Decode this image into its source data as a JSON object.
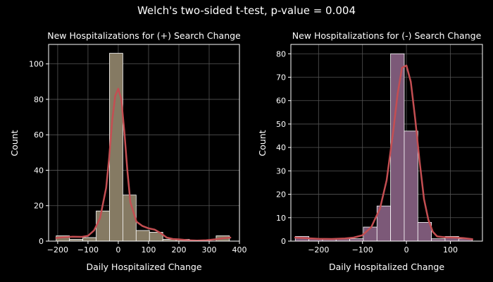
{
  "suptitle": "Welch's two-sided t-test, p-value = 0.004",
  "colors": {
    "background": "#000000",
    "grid": "#555555",
    "axes": "#ffffff",
    "kde": "#c44e52",
    "bar_edge": "#ffffff"
  },
  "chart_data": [
    {
      "type": "bar",
      "title": "New Hospitalizations for (+) Search Change",
      "xlabel": "Daily Hospitalized Change",
      "ylabel": "Count",
      "xlim": [
        -230,
        400
      ],
      "ylim": [
        0,
        111
      ],
      "xticks": [
        -200,
        -100,
        0,
        100,
        200,
        300,
        400
      ],
      "yticks": [
        0,
        20,
        40,
        60,
        80,
        100
      ],
      "grid": true,
      "bar_color": "#857a63",
      "bins": [
        {
          "x0": -205,
          "x1": -161,
          "count": 3
        },
        {
          "x0": -161,
          "x1": -117,
          "count": 1
        },
        {
          "x0": -117,
          "x1": -73,
          "count": 2
        },
        {
          "x0": -73,
          "x1": -29,
          "count": 17
        },
        {
          "x0": -29,
          "x1": 15,
          "count": 106
        },
        {
          "x0": 15,
          "x1": 59,
          "count": 26
        },
        {
          "x0": 59,
          "x1": 103,
          "count": 6
        },
        {
          "x0": 103,
          "x1": 147,
          "count": 5
        },
        {
          "x0": 147,
          "x1": 191,
          "count": 1
        },
        {
          "x0": 191,
          "x1": 235,
          "count": 1
        },
        {
          "x0": 235,
          "x1": 279,
          "count": 0
        },
        {
          "x0": 279,
          "x1": 323,
          "count": 0
        },
        {
          "x0": 323,
          "x1": 367,
          "count": 3
        }
      ],
      "kde": {
        "x": [
          -205,
          -180,
          -150,
          -120,
          -100,
          -80,
          -60,
          -40,
          -30,
          -20,
          -10,
          0,
          10,
          20,
          30,
          40,
          60,
          80,
          100,
          120,
          140,
          160,
          180,
          200,
          230,
          260,
          290,
          320,
          345,
          370
        ],
        "y": [
          1.8,
          2.2,
          2.5,
          2.4,
          3,
          6,
          13,
          30,
          47,
          68,
          82,
          86,
          80,
          62,
          40,
          22,
          11,
          8.5,
          7.2,
          6.5,
          4.5,
          2,
          1.2,
          1,
          0.5,
          0.3,
          0.5,
          1,
          1.6,
          2
        ]
      }
    },
    {
      "type": "bar",
      "title": "New Hospitalizations for (-) Search Change",
      "xlabel": "Daily Hospitalized Change",
      "ylabel": "Count",
      "xlim": [
        -263,
        173
      ],
      "ylim": [
        0,
        84
      ],
      "xticks": [
        -200,
        -100,
        0,
        100
      ],
      "yticks": [
        0,
        10,
        20,
        30,
        40,
        50,
        60,
        70,
        80
      ],
      "grid": true,
      "bar_color": "#7c5978",
      "bins": [
        {
          "x0": -253,
          "x1": -222,
          "count": 2
        },
        {
          "x0": -222,
          "x1": -191,
          "count": 1
        },
        {
          "x0": -191,
          "x1": -160,
          "count": 1
        },
        {
          "x0": -160,
          "x1": -129,
          "count": 1
        },
        {
          "x0": -129,
          "x1": -98,
          "count": 1
        },
        {
          "x0": -98,
          "x1": -67,
          "count": 6
        },
        {
          "x0": -67,
          "x1": -36,
          "count": 15
        },
        {
          "x0": -36,
          "x1": -5,
          "count": 80
        },
        {
          "x0": -5,
          "x1": 26,
          "count": 47
        },
        {
          "x0": 26,
          "x1": 57,
          "count": 8
        },
        {
          "x0": 57,
          "x1": 88,
          "count": 1
        },
        {
          "x0": 88,
          "x1": 119,
          "count": 2
        },
        {
          "x0": 119,
          "x1": 150,
          "count": 1
        }
      ],
      "kde": {
        "x": [
          -253,
          -230,
          -200,
          -170,
          -140,
          -120,
          -100,
          -80,
          -60,
          -45,
          -30,
          -20,
          -10,
          0,
          10,
          20,
          30,
          40,
          50,
          60,
          70,
          90,
          110,
          130,
          150
        ],
        "y": [
          1.5,
          1.3,
          1,
          0.9,
          1.1,
          1.5,
          2.5,
          6,
          14,
          26,
          47,
          63,
          74,
          75,
          68,
          52,
          34,
          18,
          9,
          4,
          2,
          1.6,
          1.5,
          1.3,
          0.8
        ]
      }
    }
  ]
}
